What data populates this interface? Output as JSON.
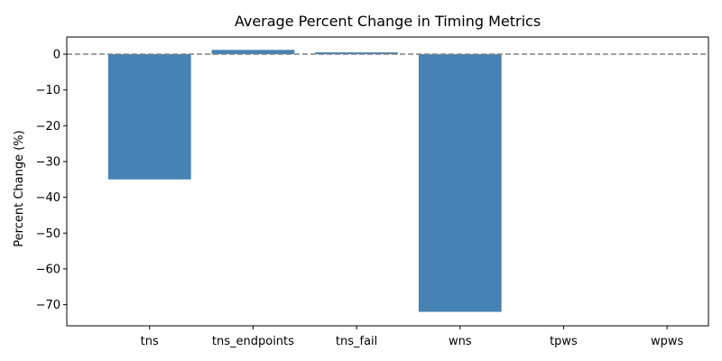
{
  "chart_data": {
    "type": "bar",
    "title": "Average Percent Change in Timing Metrics",
    "xlabel": "",
    "ylabel": "Percent Change (%)",
    "categories": [
      "tns",
      "tns_endpoints",
      "tns_fail",
      "wns",
      "tpws",
      "wpws"
    ],
    "values": [
      -35.0,
      1.2,
      0.5,
      -72.0,
      0.0,
      0.0
    ],
    "ylim": [
      -75.9,
      4.8
    ],
    "yticks": [
      0,
      -10,
      -20,
      -30,
      -40,
      -50,
      -60,
      -70
    ],
    "bar_color": "#4682b4",
    "reference_line": {
      "y": 0,
      "style": "dashed",
      "color": "#808080"
    },
    "grid": false,
    "legend": "none"
  }
}
